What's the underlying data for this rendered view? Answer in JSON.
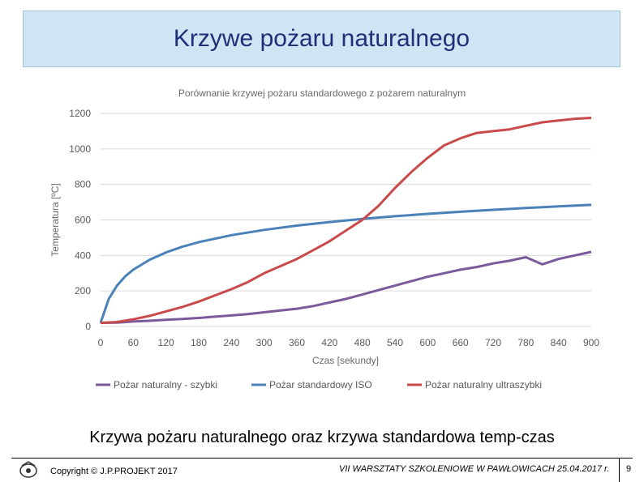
{
  "slide": {
    "title": "Krzywe pożaru naturalnego",
    "caption": "Krzywa pożaru naturalnego oraz krzywa standardowa temp-czas",
    "footer": {
      "copyright": "Copyright © J.P.PROJEKT 2017",
      "event": "VII WARSZTATY SZKOLENIOWE W PAWŁOWICACH  25.04.2017 r.",
      "page": "9"
    }
  },
  "chart_data": {
    "type": "line",
    "title": "Porównanie krzywej pożaru standardowego z pożarem naturalnym",
    "xlabel": "Czas [sekundy]",
    "ylabel": "Temperatura [ºC]",
    "xlim": [
      0,
      900
    ],
    "ylim": [
      0,
      1200
    ],
    "xticks": [
      "0",
      "60",
      "120",
      "180",
      "240",
      "300",
      "360",
      "420",
      "480",
      "540",
      "600",
      "660",
      "720",
      "780",
      "840",
      "900"
    ],
    "yticks": [
      "0",
      "200",
      "400",
      "600",
      "800",
      "1000",
      "1200"
    ],
    "grid": "horizontal",
    "legend_position": "bottom",
    "series": [
      {
        "name": "Pożar naturalny - szybki",
        "color": "#7a5a9c",
        "x": [
          0,
          30,
          60,
          90,
          120,
          150,
          180,
          210,
          240,
          270,
          300,
          330,
          360,
          390,
          420,
          450,
          480,
          510,
          540,
          570,
          600,
          630,
          660,
          690,
          720,
          750,
          780,
          810,
          840,
          870,
          900
        ],
        "y": [
          20,
          22,
          28,
          32,
          38,
          42,
          48,
          55,
          62,
          70,
          80,
          90,
          100,
          115,
          135,
          155,
          180,
          205,
          230,
          255,
          280,
          300,
          320,
          335,
          355,
          370,
          390,
          350,
          380,
          400,
          420
        ]
      },
      {
        "name": "Pożar standardowy ISO",
        "color": "#4a81b8",
        "x": [
          0,
          15,
          30,
          45,
          60,
          90,
          120,
          150,
          180,
          240,
          300,
          360,
          420,
          480,
          540,
          600,
          660,
          720,
          780,
          840,
          900
        ],
        "y": [
          20,
          155,
          230,
          282,
          320,
          376,
          417,
          449,
          475,
          514,
          544,
          568,
          588,
          606,
          621,
          634,
          646,
          657,
          667,
          676,
          685
        ]
      },
      {
        "name": "Pożar naturalny ultraszybki",
        "color": "#c84a4a",
        "x": [
          0,
          30,
          60,
          90,
          120,
          150,
          180,
          210,
          240,
          270,
          300,
          330,
          360,
          390,
          420,
          450,
          480,
          510,
          540,
          570,
          600,
          630,
          660,
          690,
          720,
          750,
          780,
          810,
          840,
          870,
          900
        ],
        "y": [
          20,
          25,
          40,
          60,
          85,
          110,
          140,
          175,
          210,
          250,
          300,
          340,
          380,
          430,
          480,
          540,
          600,
          680,
          780,
          870,
          950,
          1020,
          1060,
          1090,
          1100,
          1110,
          1130,
          1150,
          1160,
          1170,
          1175
        ]
      }
    ]
  }
}
